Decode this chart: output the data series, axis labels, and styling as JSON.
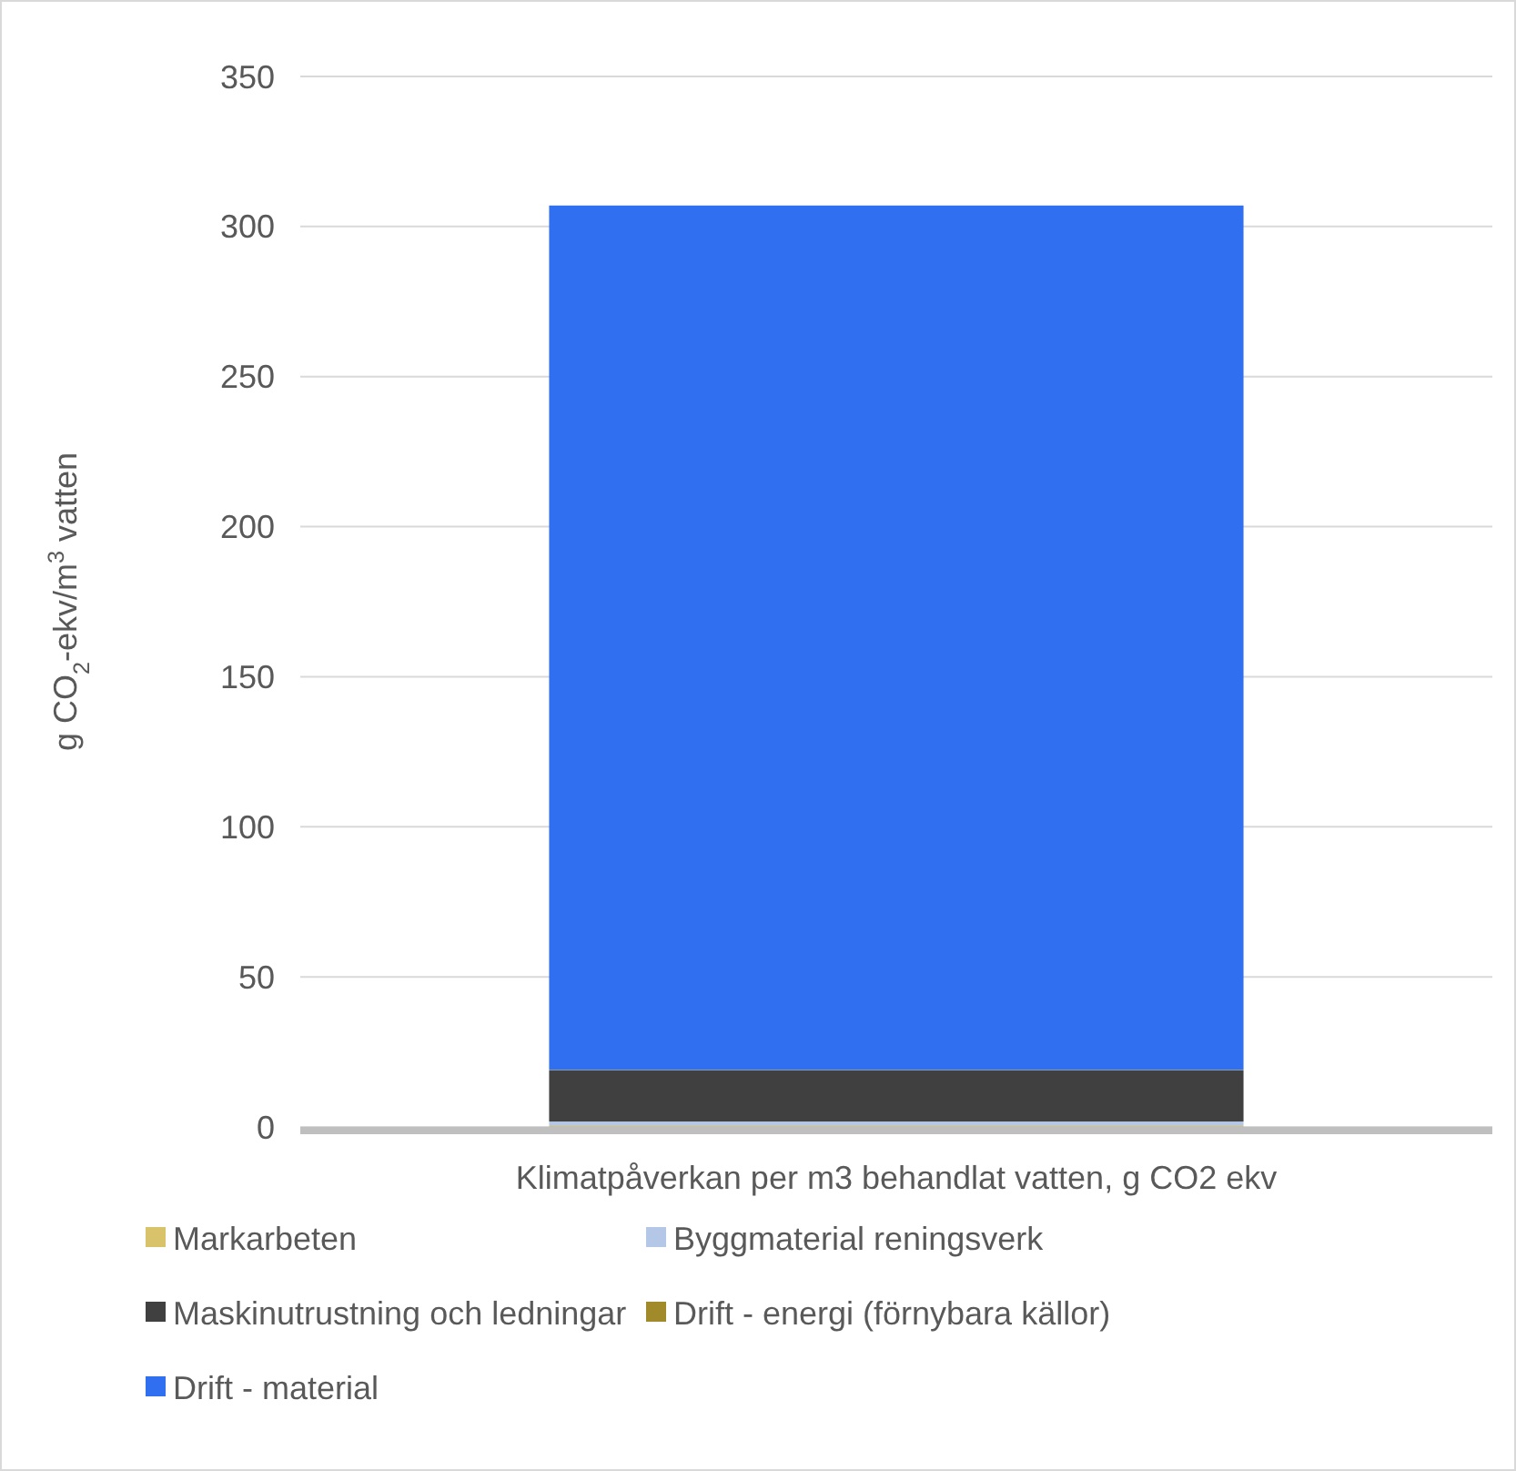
{
  "chart_data": {
    "type": "bar",
    "stacked": true,
    "ylabel": "g CO$_{2}$-ekv/m$^{3}$ vatten",
    "categories": [
      "Klimatpåverkan per m3 behandlat vatten, g CO2 ekv"
    ],
    "series": [
      {
        "name": "Markarbeten",
        "color": "#d9c36a",
        "values": [
          0.3
        ]
      },
      {
        "name": "Byggmaterial reningsverk",
        "color": "#b4c7e7",
        "values": [
          1.5
        ]
      },
      {
        "name": "Maskinutrustning och ledningar",
        "color": "#404040",
        "values": [
          17
        ]
      },
      {
        "name": "Drift - energi (förnybara källor)",
        "color": "#a08a2a",
        "values": [
          0.2
        ]
      },
      {
        "name": "Drift - material",
        "color": "#2f6ff0",
        "values": [
          288
        ]
      }
    ],
    "ylim": [
      0,
      350
    ],
    "yticks": [
      0,
      50,
      100,
      150,
      200,
      250,
      300,
      350
    ],
    "grid": "y",
    "legend": "bottom"
  }
}
